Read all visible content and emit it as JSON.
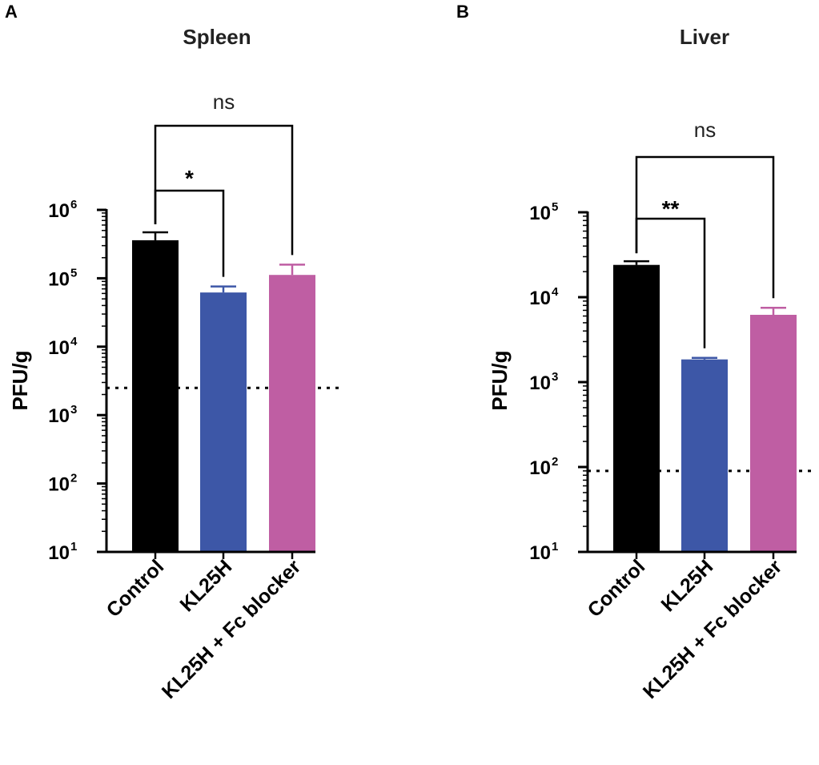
{
  "panels": [
    {
      "letter": "A"
    },
    {
      "letter": "B"
    }
  ],
  "chart_data": [
    {
      "type": "bar",
      "title": "Spleen",
      "ylabel": "PFU/g",
      "xlabel": "",
      "yscale": "log",
      "ylim": [
        10,
        1000000
      ],
      "yticks": [
        {
          "base": "10",
          "exp": "1"
        },
        {
          "base": "10",
          "exp": "2"
        },
        {
          "base": "10",
          "exp": "3"
        },
        {
          "base": "10",
          "exp": "4"
        },
        {
          "base": "10",
          "exp": "5"
        },
        {
          "base": "10",
          "exp": "6"
        }
      ],
      "categories": [
        "Control",
        "KL25H",
        "KL25H + Fc blocker"
      ],
      "values": [
        360000,
        62000,
        112000
      ],
      "errors_upper": [
        470000,
        76000,
        158000
      ],
      "colors": [
        "#000000",
        "#3d57a7",
        "#bf5ea3"
      ],
      "detection_limit": 2500,
      "comparisons": [
        {
          "from": 0,
          "to": 1,
          "label": "*"
        },
        {
          "from": 0,
          "to": 2,
          "label": "ns"
        }
      ]
    },
    {
      "type": "bar",
      "title": "Liver",
      "ylabel": "PFU/g",
      "xlabel": "",
      "yscale": "log",
      "ylim": [
        10,
        100000
      ],
      "yticks": [
        {
          "base": "10",
          "exp": "1"
        },
        {
          "base": "10",
          "exp": "2"
        },
        {
          "base": "10",
          "exp": "3"
        },
        {
          "base": "10",
          "exp": "4"
        },
        {
          "base": "10",
          "exp": "5"
        }
      ],
      "categories": [
        "Control",
        "KL25H",
        "KL25H + Fc blocker"
      ],
      "values": [
        24000,
        1850,
        6200
      ],
      "errors_upper": [
        26500,
        1930,
        7500
      ],
      "colors": [
        "#000000",
        "#3d57a7",
        "#bf5ea3"
      ],
      "detection_limit": 90,
      "comparisons": [
        {
          "from": 0,
          "to": 1,
          "label": "**"
        },
        {
          "from": 0,
          "to": 2,
          "label": "ns"
        }
      ]
    }
  ]
}
